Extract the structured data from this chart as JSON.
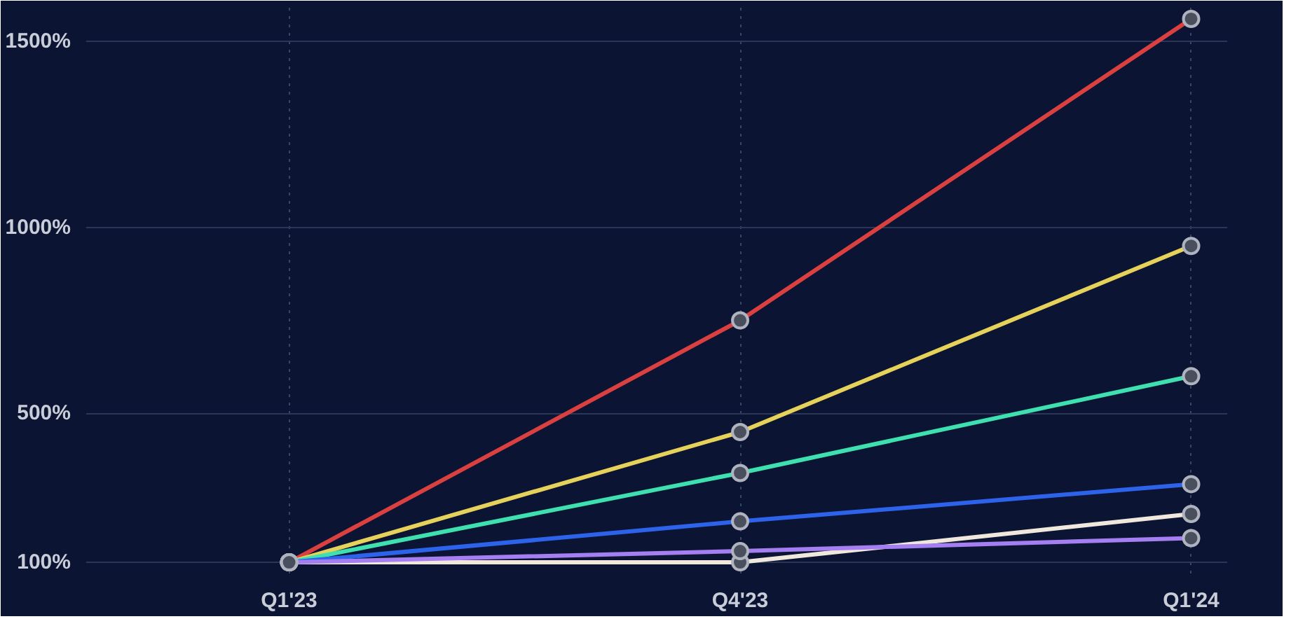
{
  "chart_data": {
    "type": "line",
    "categories": [
      "Q1'23",
      "Q4'23",
      "Q1'24"
    ],
    "series": [
      {
        "color": "#d9403f",
        "values": [
          100,
          750,
          1560
        ]
      },
      {
        "color": "#e6d25a",
        "values": [
          100,
          450,
          950
        ]
      },
      {
        "color": "#3ee0b0",
        "values": [
          100,
          340,
          600
        ]
      },
      {
        "color": "#2d62ea",
        "values": [
          100,
          210,
          310
        ]
      },
      {
        "color": "#f0e8dc",
        "values": [
          100,
          100,
          230
        ]
      },
      {
        "color": "#a57ef2",
        "values": [
          100,
          130,
          165
        ]
      }
    ],
    "ylim": [
      70,
      1590
    ],
    "yticks": [
      {
        "value": 100,
        "label": "100%"
      },
      {
        "value": 500,
        "label": "500%"
      },
      {
        "value": 1000,
        "label": "1000%"
      },
      {
        "value": 1500,
        "label": "1500%"
      }
    ],
    "grid": true,
    "marker": "circle",
    "line_style": "solid"
  }
}
